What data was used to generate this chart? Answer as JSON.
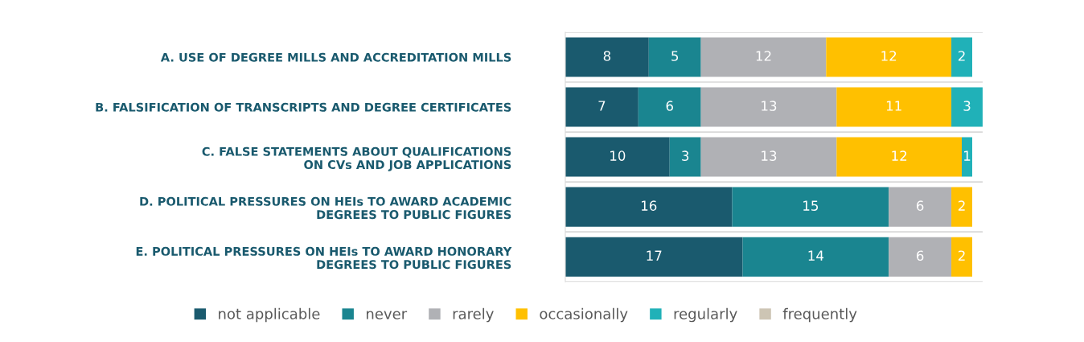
{
  "chart_data": {
    "type": "bar",
    "orientation": "horizontal",
    "stacked": true,
    "grid": "y",
    "legend": "bottom",
    "categories": [
      "A. USE OF DEGREE MILLS AND ACCREDITATION MILLS",
      "B. FALSIFICATION OF TRANSCRIPTS AND DEGREE CERTIFICATES",
      "C. FALSE STATEMENTS ABOUT QUALIFICATIONS\nON CVs AND JOB APPLICATIONS",
      "D. POLITICAL PRESSURES ON HEIs TO AWARD ACADEMIC\nDEGREES TO PUBLIC FIGURES",
      "E. POLITICAL PRESSURES ON HEIs TO AWARD HONORARY\nDEGREES TO PUBLIC FIGURES"
    ],
    "series": [
      {
        "name": "not applicable",
        "color": "#1a5a6e",
        "values": [
          8,
          7,
          10,
          16,
          17
        ],
        "value_labels": [
          "8",
          "7",
          "10",
          "16",
          "17"
        ]
      },
      {
        "name": "never",
        "color": "#1a8590",
        "values": [
          5,
          6,
          3,
          15,
          14
        ],
        "value_labels": [
          "5",
          "6",
          "3",
          "15",
          "14"
        ]
      },
      {
        "name": "rarely",
        "color": "#b0b1b5",
        "values": [
          12,
          13,
          13,
          6,
          6
        ],
        "value_labels": [
          "12",
          "13",
          "13",
          "6",
          "6"
        ]
      },
      {
        "name": "occasionally",
        "color": "#ffc000",
        "values": [
          12,
          11,
          12,
          2,
          2
        ],
        "value_labels": [
          "12",
          "11",
          "12",
          "2",
          "2"
        ]
      },
      {
        "name": "regularly",
        "color": "#20b1b8",
        "values": [
          2,
          3,
          1,
          0,
          0
        ],
        "value_labels": [
          "2",
          "3",
          "1",
          null,
          null
        ]
      },
      {
        "name": "frequently",
        "color": "#cdc5b4",
        "values": [
          0,
          0,
          0,
          0,
          0
        ],
        "value_labels": [
          null,
          null,
          null,
          null,
          null
        ]
      }
    ]
  }
}
